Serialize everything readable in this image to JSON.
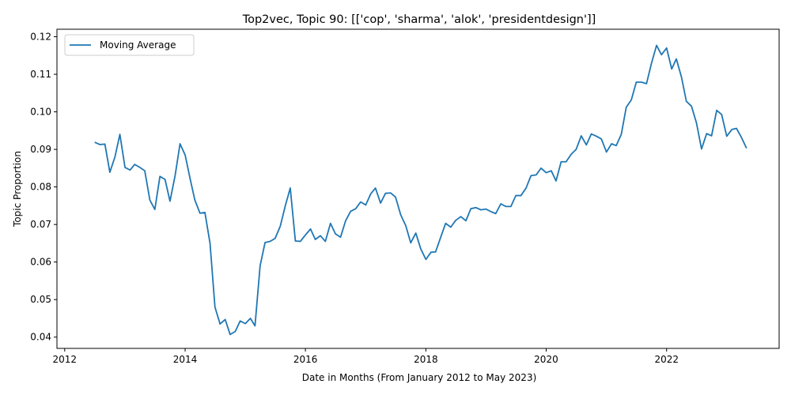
{
  "chart_data": {
    "type": "line",
    "title": "Top2vec, Topic 90: [['cop', 'sharma', 'alok', 'presidentdesign']]",
    "xlabel": "Date in Months (From January 2012 to May 2023)",
    "ylabel": "Topic Proportion",
    "xlim": [
      "2011-11-15",
      "2023-11-15"
    ],
    "ylim": [
      0.037,
      0.122
    ],
    "x_ticks": [
      "2012",
      "2014",
      "2016",
      "2018",
      "2020",
      "2022"
    ],
    "y_ticks": [
      "0.04",
      "0.05",
      "0.06",
      "0.07",
      "0.08",
      "0.09",
      "0.10",
      "0.11",
      "0.12"
    ],
    "legend": {
      "position": "top-left",
      "entries": [
        "Moving Average"
      ]
    },
    "grid": false,
    "series": [
      {
        "name": "Moving Average",
        "color": "#1f77b4",
        "points": [
          [
            "2012-07",
            0.0919
          ],
          [
            "2012-08",
            0.0913
          ],
          [
            "2012-09",
            0.0914
          ],
          [
            "2012-10",
            0.0839
          ],
          [
            "2012-11",
            0.088
          ],
          [
            "2012-12",
            0.094
          ],
          [
            "2013-01",
            0.0852
          ],
          [
            "2013-02",
            0.0845
          ],
          [
            "2013-03",
            0.086
          ],
          [
            "2013-04",
            0.0852
          ],
          [
            "2013-05",
            0.0843
          ],
          [
            "2013-06",
            0.0765
          ],
          [
            "2013-07",
            0.074
          ],
          [
            "2013-08",
            0.0828
          ],
          [
            "2013-09",
            0.082
          ],
          [
            "2013-10",
            0.0762
          ],
          [
            "2013-11",
            0.083
          ],
          [
            "2013-12",
            0.0915
          ],
          [
            "2014-01",
            0.0885
          ],
          [
            "2014-02",
            0.082
          ],
          [
            "2014-03",
            0.0765
          ],
          [
            "2014-04",
            0.073
          ],
          [
            "2014-05",
            0.0732
          ],
          [
            "2014-06",
            0.065
          ],
          [
            "2014-07",
            0.048
          ],
          [
            "2014-08",
            0.0435
          ],
          [
            "2014-09",
            0.0447
          ],
          [
            "2014-10",
            0.0407
          ],
          [
            "2014-11",
            0.0415
          ],
          [
            "2014-12",
            0.0443
          ],
          [
            "2015-01",
            0.0436
          ],
          [
            "2015-02",
            0.045
          ],
          [
            "2015-03",
            0.043
          ],
          [
            "2015-04",
            0.059
          ],
          [
            "2015-05",
            0.0652
          ],
          [
            "2015-06",
            0.0655
          ],
          [
            "2015-07",
            0.0663
          ],
          [
            "2015-08",
            0.0695
          ],
          [
            "2015-09",
            0.075
          ],
          [
            "2015-10",
            0.0797
          ],
          [
            "2015-11",
            0.0656
          ],
          [
            "2015-12",
            0.0655
          ],
          [
            "2016-01",
            0.0672
          ],
          [
            "2016-02",
            0.0688
          ],
          [
            "2016-03",
            0.066
          ],
          [
            "2016-04",
            0.067
          ],
          [
            "2016-05",
            0.0655
          ],
          [
            "2016-06",
            0.0703
          ],
          [
            "2016-07",
            0.0675
          ],
          [
            "2016-08",
            0.0666
          ],
          [
            "2016-09",
            0.071
          ],
          [
            "2016-10",
            0.0735
          ],
          [
            "2016-11",
            0.0742
          ],
          [
            "2016-12",
            0.076
          ],
          [
            "2017-01",
            0.0752
          ],
          [
            "2017-02",
            0.0782
          ],
          [
            "2017-03",
            0.0797
          ],
          [
            "2017-04",
            0.0757
          ],
          [
            "2017-05",
            0.0783
          ],
          [
            "2017-06",
            0.0784
          ],
          [
            "2017-07",
            0.0773
          ],
          [
            "2017-08",
            0.0726
          ],
          [
            "2017-09",
            0.0697
          ],
          [
            "2017-10",
            0.0651
          ],
          [
            "2017-11",
            0.0677
          ],
          [
            "2017-12",
            0.0635
          ],
          [
            "2018-01",
            0.0607
          ],
          [
            "2018-02",
            0.0626
          ],
          [
            "2018-03",
            0.0627
          ],
          [
            "2018-04",
            0.0666
          ],
          [
            "2018-05",
            0.0703
          ],
          [
            "2018-06",
            0.0693
          ],
          [
            "2018-07",
            0.0711
          ],
          [
            "2018-08",
            0.0721
          ],
          [
            "2018-09",
            0.071
          ],
          [
            "2018-10",
            0.0742
          ],
          [
            "2018-11",
            0.0745
          ],
          [
            "2018-12",
            0.0739
          ],
          [
            "2019-01",
            0.0741
          ],
          [
            "2019-02",
            0.0734
          ],
          [
            "2019-03",
            0.0729
          ],
          [
            "2019-04",
            0.0755
          ],
          [
            "2019-05",
            0.0748
          ],
          [
            "2019-06",
            0.0748
          ],
          [
            "2019-07",
            0.0777
          ],
          [
            "2019-08",
            0.0777
          ],
          [
            "2019-09",
            0.0797
          ],
          [
            "2019-10",
            0.083
          ],
          [
            "2019-11",
            0.0832
          ],
          [
            "2019-12",
            0.085
          ],
          [
            "2020-01",
            0.0838
          ],
          [
            "2020-02",
            0.0843
          ],
          [
            "2020-03",
            0.0816
          ],
          [
            "2020-04",
            0.0867
          ],
          [
            "2020-05",
            0.0867
          ],
          [
            "2020-06",
            0.0887
          ],
          [
            "2020-07",
            0.09
          ],
          [
            "2020-08",
            0.0936
          ],
          [
            "2020-09",
            0.0912
          ],
          [
            "2020-10",
            0.0941
          ],
          [
            "2020-11",
            0.0935
          ],
          [
            "2020-12",
            0.0928
          ],
          [
            "2021-01",
            0.0893
          ],
          [
            "2021-02",
            0.0915
          ],
          [
            "2021-03",
            0.091
          ],
          [
            "2021-04",
            0.094
          ],
          [
            "2021-05",
            0.1012
          ],
          [
            "2021-06",
            0.1032
          ],
          [
            "2021-07",
            0.1079
          ],
          [
            "2021-08",
            0.1079
          ],
          [
            "2021-09",
            0.1075
          ],
          [
            "2021-10",
            0.1129
          ],
          [
            "2021-11",
            0.1177
          ],
          [
            "2021-12",
            0.1152
          ],
          [
            "2022-01",
            0.117
          ],
          [
            "2022-02",
            0.1114
          ],
          [
            "2022-03",
            0.1141
          ],
          [
            "2022-04",
            0.1093
          ],
          [
            "2022-05",
            0.1028
          ],
          [
            "2022-06",
            0.1015
          ],
          [
            "2022-07",
            0.0971
          ],
          [
            "2022-08",
            0.0901
          ],
          [
            "2022-09",
            0.0942
          ],
          [
            "2022-10",
            0.0936
          ],
          [
            "2022-11",
            0.1004
          ],
          [
            "2022-12",
            0.0993
          ],
          [
            "2023-01",
            0.0935
          ],
          [
            "2023-02",
            0.0953
          ],
          [
            "2023-03",
            0.0956
          ],
          [
            "2023-04",
            0.0931
          ],
          [
            "2023-05",
            0.0903
          ]
        ]
      }
    ]
  }
}
